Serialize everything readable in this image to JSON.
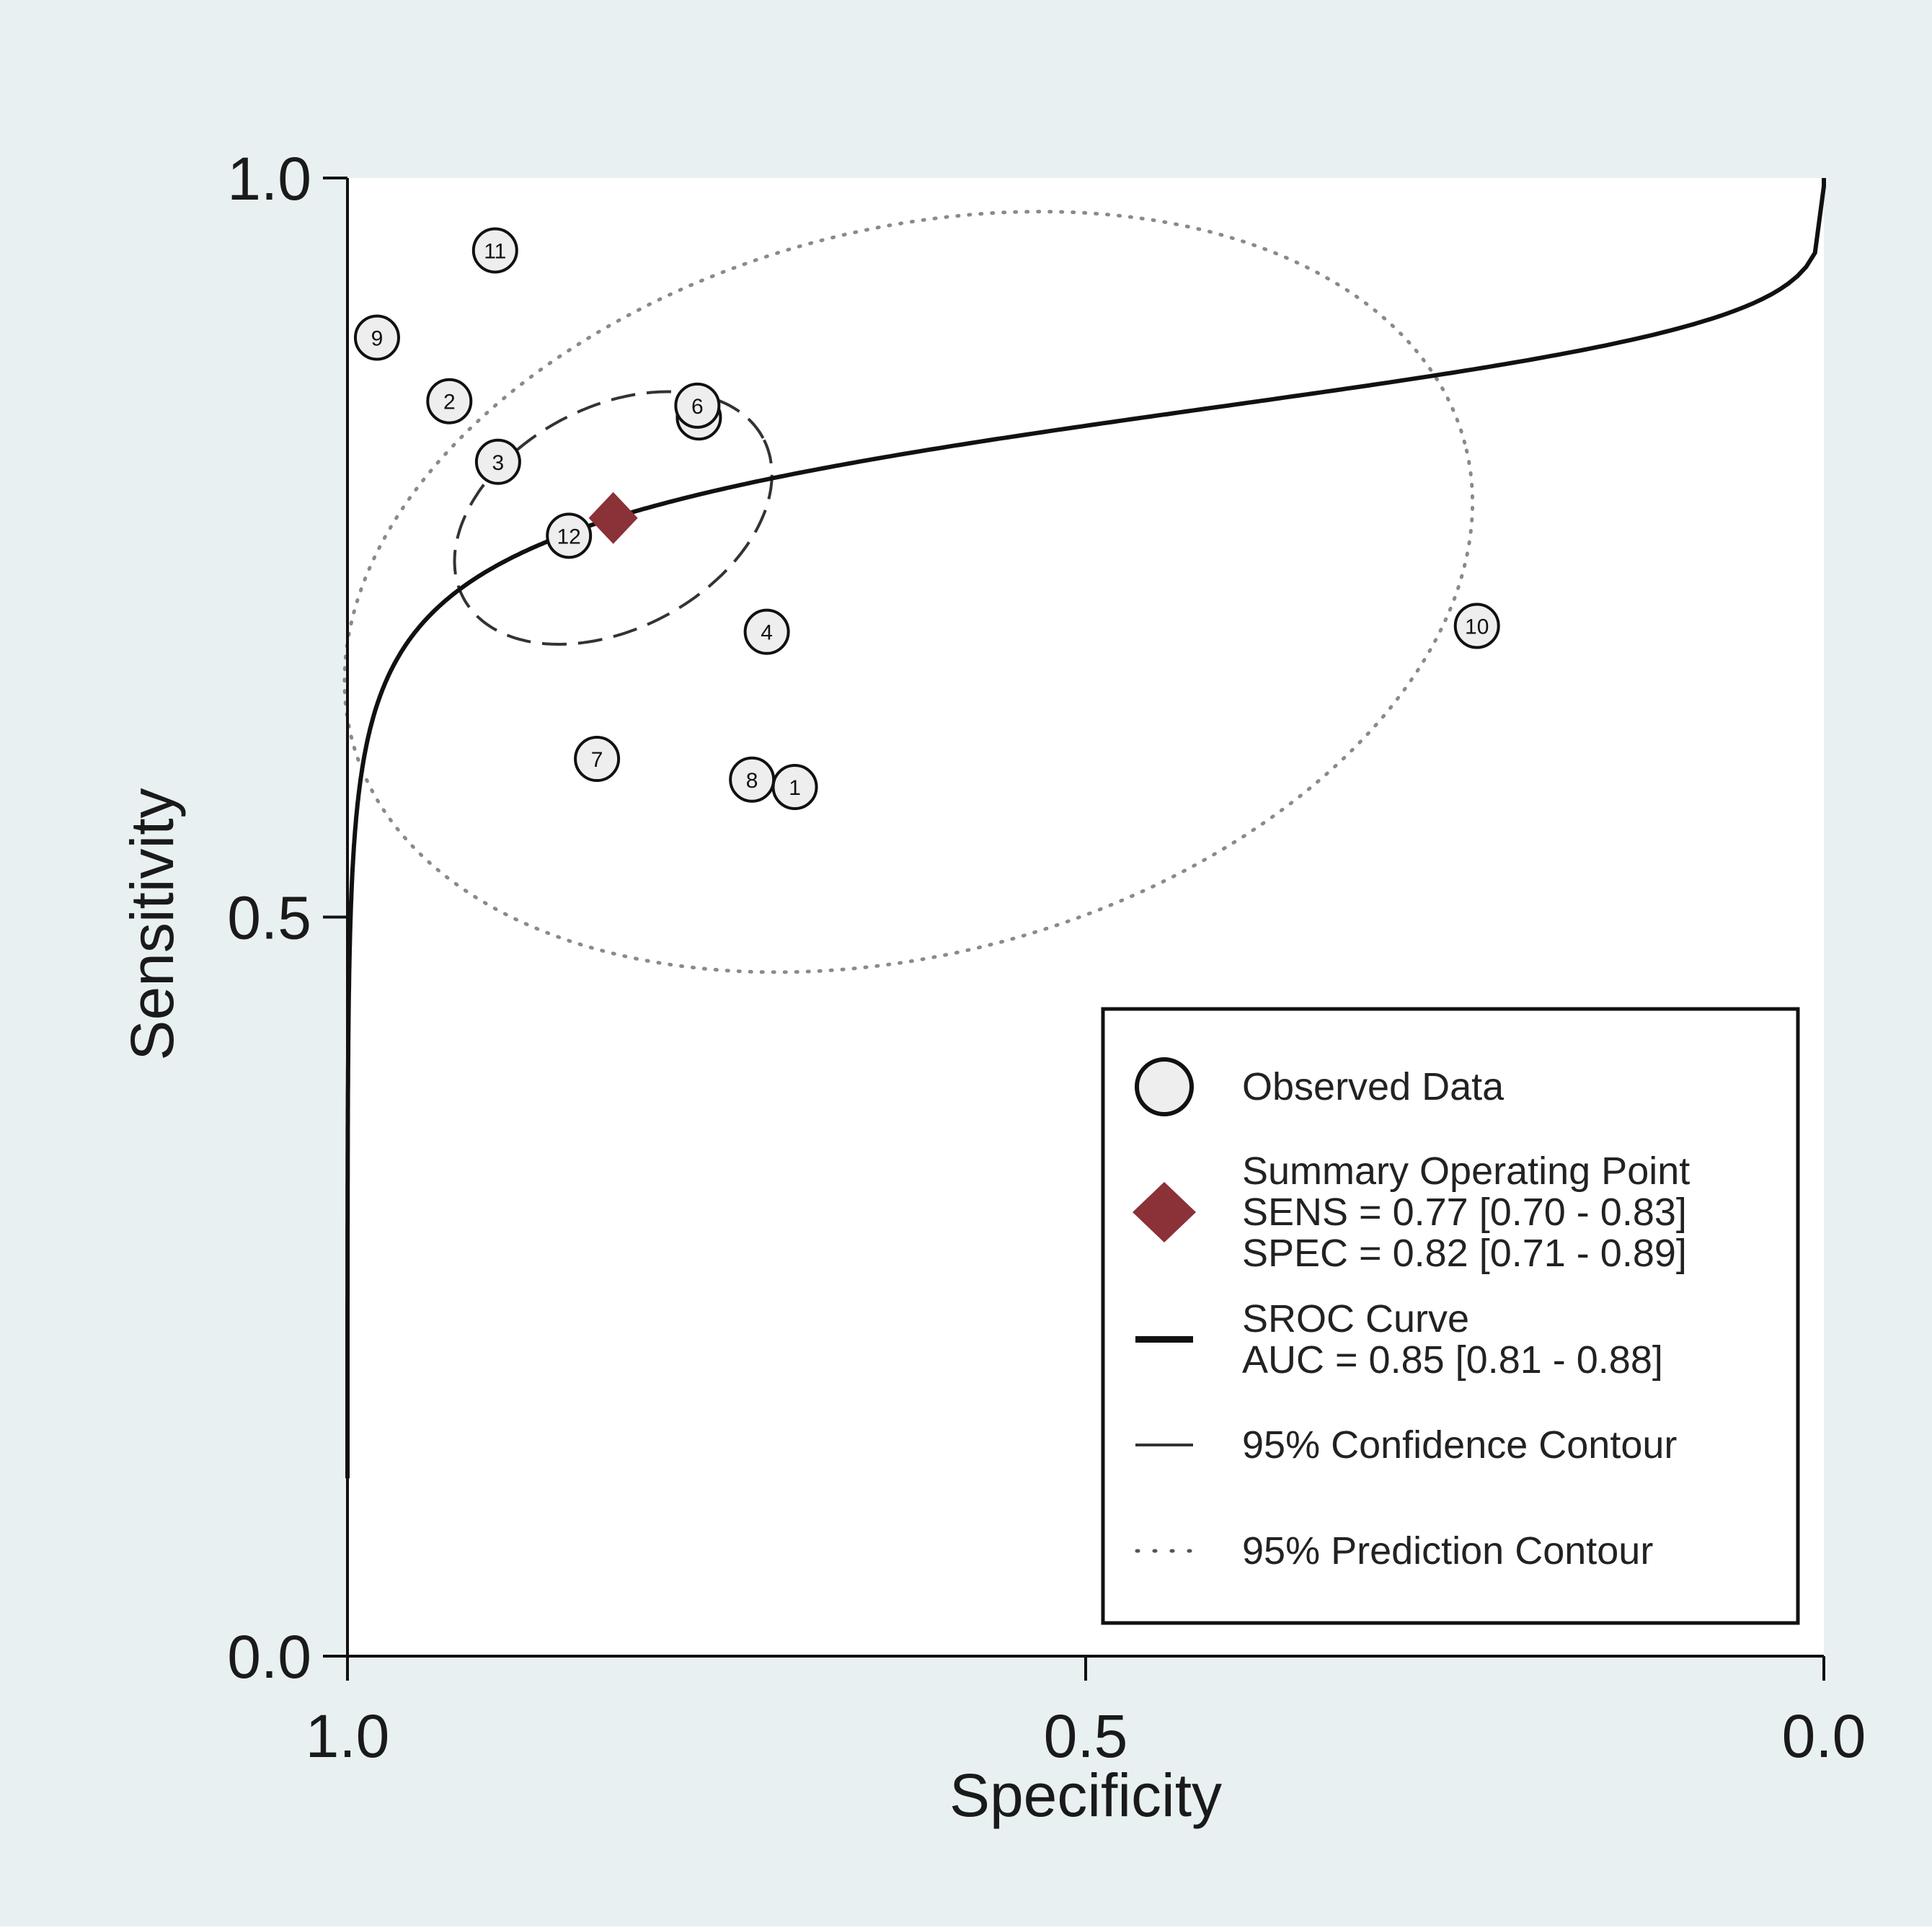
{
  "colors": {
    "outer_background": "#e9f0f2",
    "plot_background": "#ffffff",
    "summary_point": "#8b3138",
    "study_fill": "#eeeeee",
    "ink": "#111111",
    "prediction_contour": "#8a8a8a"
  },
  "chart_data": {
    "type": "scatter",
    "title": "",
    "xlabel": "Specificity",
    "ylabel": "Sensitivity",
    "x_axis_reversed": true,
    "xlim": [
      1.0,
      0.0
    ],
    "ylim": [
      0.0,
      1.0
    ],
    "x_ticks": [
      {
        "value": 1.0,
        "label": "1.0"
      },
      {
        "value": 0.5,
        "label": "0.5"
      },
      {
        "value": 0.0,
        "label": "0.0"
      }
    ],
    "y_ticks": [
      {
        "value": 0.0,
        "label": "0.0"
      },
      {
        "value": 0.5,
        "label": "0.5"
      },
      {
        "value": 1.0,
        "label": "1.0"
      }
    ],
    "studies": [
      {
        "id": "1",
        "spec": 0.697,
        "sens": 0.588
      },
      {
        "id": "2",
        "spec": 0.931,
        "sens": 0.849
      },
      {
        "id": "3",
        "spec": 0.898,
        "sens": 0.808
      },
      {
        "id": "4",
        "spec": 0.716,
        "sens": 0.693
      },
      {
        "id": "5",
        "spec": 0.762,
        "sens": 0.838
      },
      {
        "id": "6",
        "spec": 0.763,
        "sens": 0.846
      },
      {
        "id": "7",
        "spec": 0.831,
        "sens": 0.607
      },
      {
        "id": "8",
        "spec": 0.726,
        "sens": 0.593
      },
      {
        "id": "9",
        "spec": 0.98,
        "sens": 0.892
      },
      {
        "id": "10",
        "spec": 0.235,
        "sens": 0.697
      },
      {
        "id": "11",
        "spec": 0.9,
        "sens": 0.951
      },
      {
        "id": "12",
        "spec": 0.85,
        "sens": 0.758
      }
    ],
    "summary_point": {
      "spec": 0.82,
      "sens": 0.77
    },
    "sroc_curve": {
      "auc": 0.85
    },
    "confidence_contour": {
      "center_spec": 0.82,
      "center_sens": 0.77,
      "semi_axis_spec": 0.115,
      "semi_axis_sens": 0.075,
      "rotation_deg": 28
    },
    "prediction_contour": {
      "center_spec": 0.62,
      "center_sens": 0.72,
      "semi_axis_spec": 0.39,
      "semi_axis_sens": 0.245,
      "rotation_deg": 15
    },
    "legend_position": "bottom-right",
    "legend": [
      {
        "key": "observed",
        "lines": [
          "Observed Data"
        ]
      },
      {
        "key": "summary",
        "lines": [
          "Summary Operating Point",
          "SENS = 0.77 [0.70 - 0.83]",
          "SPEC = 0.82 [0.71 - 0.89]"
        ]
      },
      {
        "key": "sroc",
        "lines": [
          "SROC Curve",
          "AUC = 0.85 [0.81 - 0.88]"
        ]
      },
      {
        "key": "confidence",
        "lines": [
          "95% Confidence Contour"
        ]
      },
      {
        "key": "prediction",
        "lines": [
          "95% Prediction Contour"
        ]
      }
    ]
  }
}
